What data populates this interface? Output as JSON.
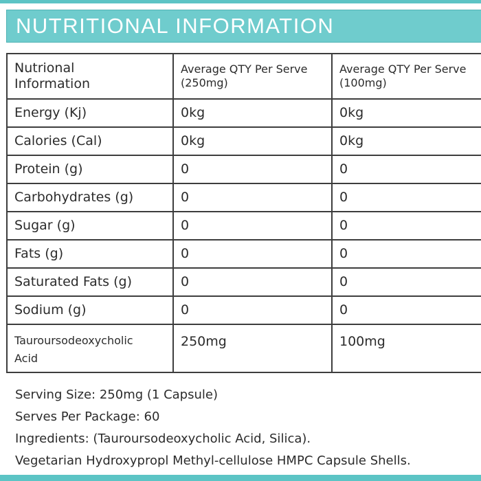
{
  "header": {
    "title": "NUTRITIONAL INFORMATION"
  },
  "table": {
    "headers": {
      "col1_line1": "Nutrional",
      "col1_line2": "Information",
      "col2_line1": "Average QTY Per Serve",
      "col2_line2": "(250mg)",
      "col3_line1": "Average QTY Per Serve",
      "col3_line2": "(100mg)"
    },
    "rows": [
      {
        "name": "Energy (Kj)",
        "per_250": "0kg",
        "per_100": "0kg"
      },
      {
        "name": "Calories (Cal)",
        "per_250": "0kg",
        "per_100": "0kg"
      },
      {
        "name": "Protein (g)",
        "per_250": "0",
        "per_100": "0"
      },
      {
        "name": "Carbohydrates (g)",
        "per_250": "0",
        "per_100": "0"
      },
      {
        "name": "Sugar (g)",
        "per_250": "0",
        "per_100": "0"
      },
      {
        "name": "Fats (g)",
        "per_250": "0",
        "per_100": "0"
      },
      {
        "name": "Saturated Fats (g)",
        "per_250": "0",
        "per_100": "0"
      },
      {
        "name": "Sodium (g)",
        "per_250": "0",
        "per_100": "0"
      }
    ],
    "last_row": {
      "name_line1": "Tauroursodeoxycholic",
      "name_line2": "Acid",
      "per_250": "250mg",
      "per_100": "100mg"
    }
  },
  "footer": {
    "serving_size": "Serving Size: 250mg (1 Capsule)",
    "serves_per_package": "Serves Per Package: 60",
    "ingredients": "Ingredients: (Tauroursodeoxycholic Acid, Silica).",
    "capsule": "Vegetarian Hydroxypropl Methyl-cellulose HMPC Capsule Shells."
  },
  "colors": {
    "accent": "#6fcccd",
    "border": "#3d3d3d",
    "text": "#2b2b2b"
  }
}
